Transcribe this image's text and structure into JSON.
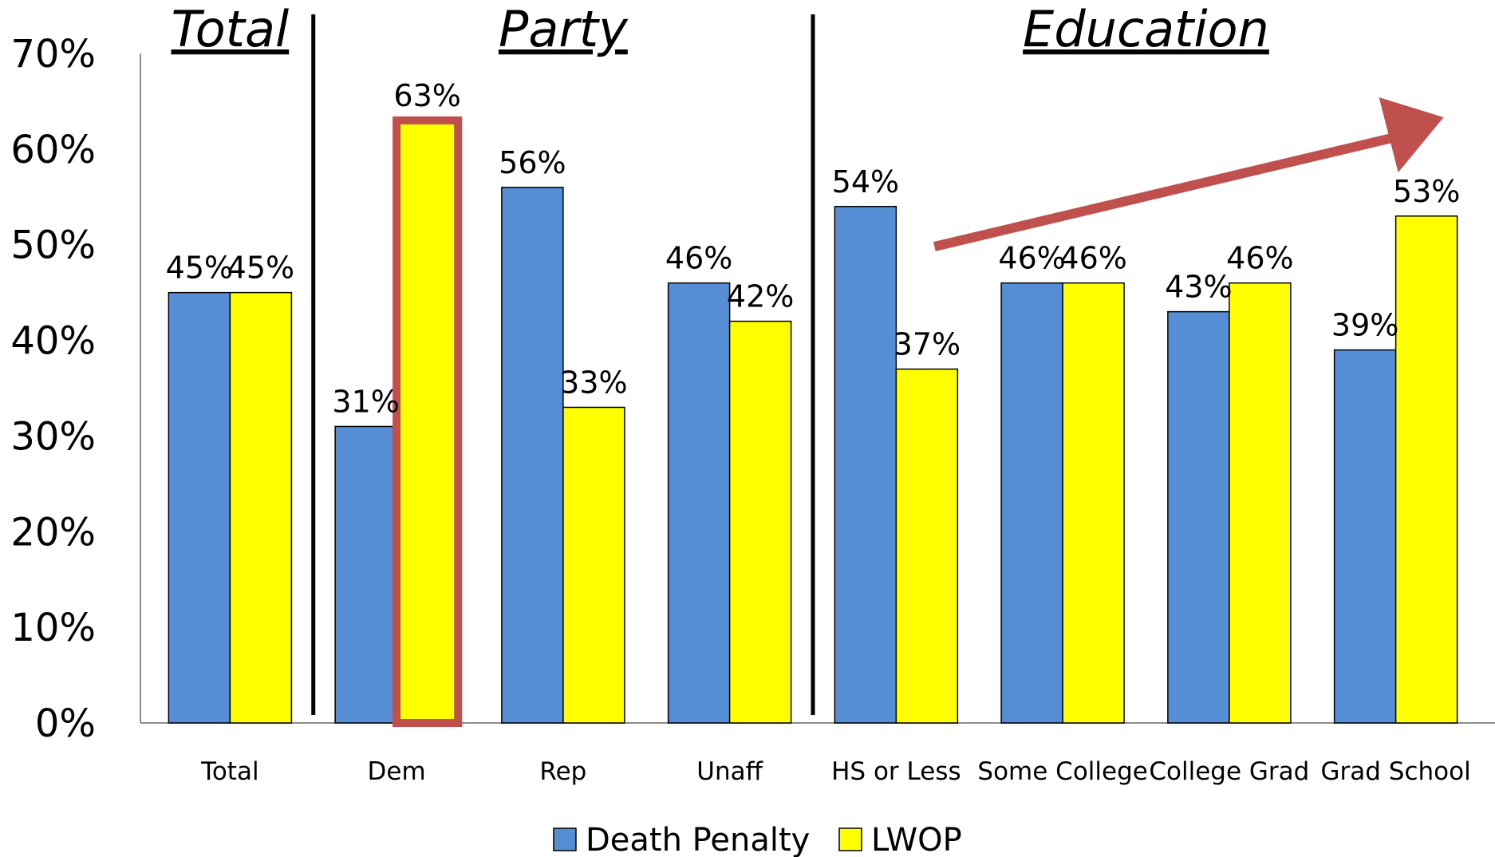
{
  "chart_data": {
    "type": "bar",
    "categories": [
      "Total",
      "Dem",
      "Rep",
      "Unaff",
      "HS or Less",
      "Some College",
      "College Grad",
      "Grad School"
    ],
    "series": [
      {
        "name": "Death Penalty",
        "values": [
          45,
          31,
          56,
          46,
          54,
          46,
          43,
          39
        ],
        "labels": [
          "45%",
          "31%",
          "56%",
          "46%",
          "54%",
          "46%",
          "43%",
          "39%"
        ],
        "color": "#558ed5"
      },
      {
        "name": "LWOP",
        "values": [
          45,
          63,
          33,
          42,
          37,
          46,
          46,
          53
        ],
        "labels": [
          "45%",
          "63%",
          "33%",
          "42%",
          "37%",
          "46%",
          "46%",
          "53%"
        ],
        "color": "#ffff00"
      }
    ],
    "y_ticks": [
      "0%",
      "10%",
      "20%",
      "30%",
      "40%",
      "50%",
      "60%",
      "70%"
    ],
    "ylim": [
      0,
      70
    ],
    "groups": [
      {
        "label": "Total",
        "categories": [
          "Total"
        ]
      },
      {
        "label": "Party",
        "categories": [
          "Dem",
          "Rep",
          "Unaff"
        ]
      },
      {
        "label": "Education",
        "categories": [
          "HS or Less",
          "Some College",
          "College Grad",
          "Grad School"
        ]
      }
    ],
    "highlight": {
      "category": "Dem",
      "series": "LWOP",
      "color": "#c0504d"
    },
    "annotation": {
      "type": "arrow",
      "from_category": "HS or Less",
      "to_category": "Grad School",
      "color": "#c0504d"
    },
    "legend_position": "bottom",
    "grid": false
  }
}
